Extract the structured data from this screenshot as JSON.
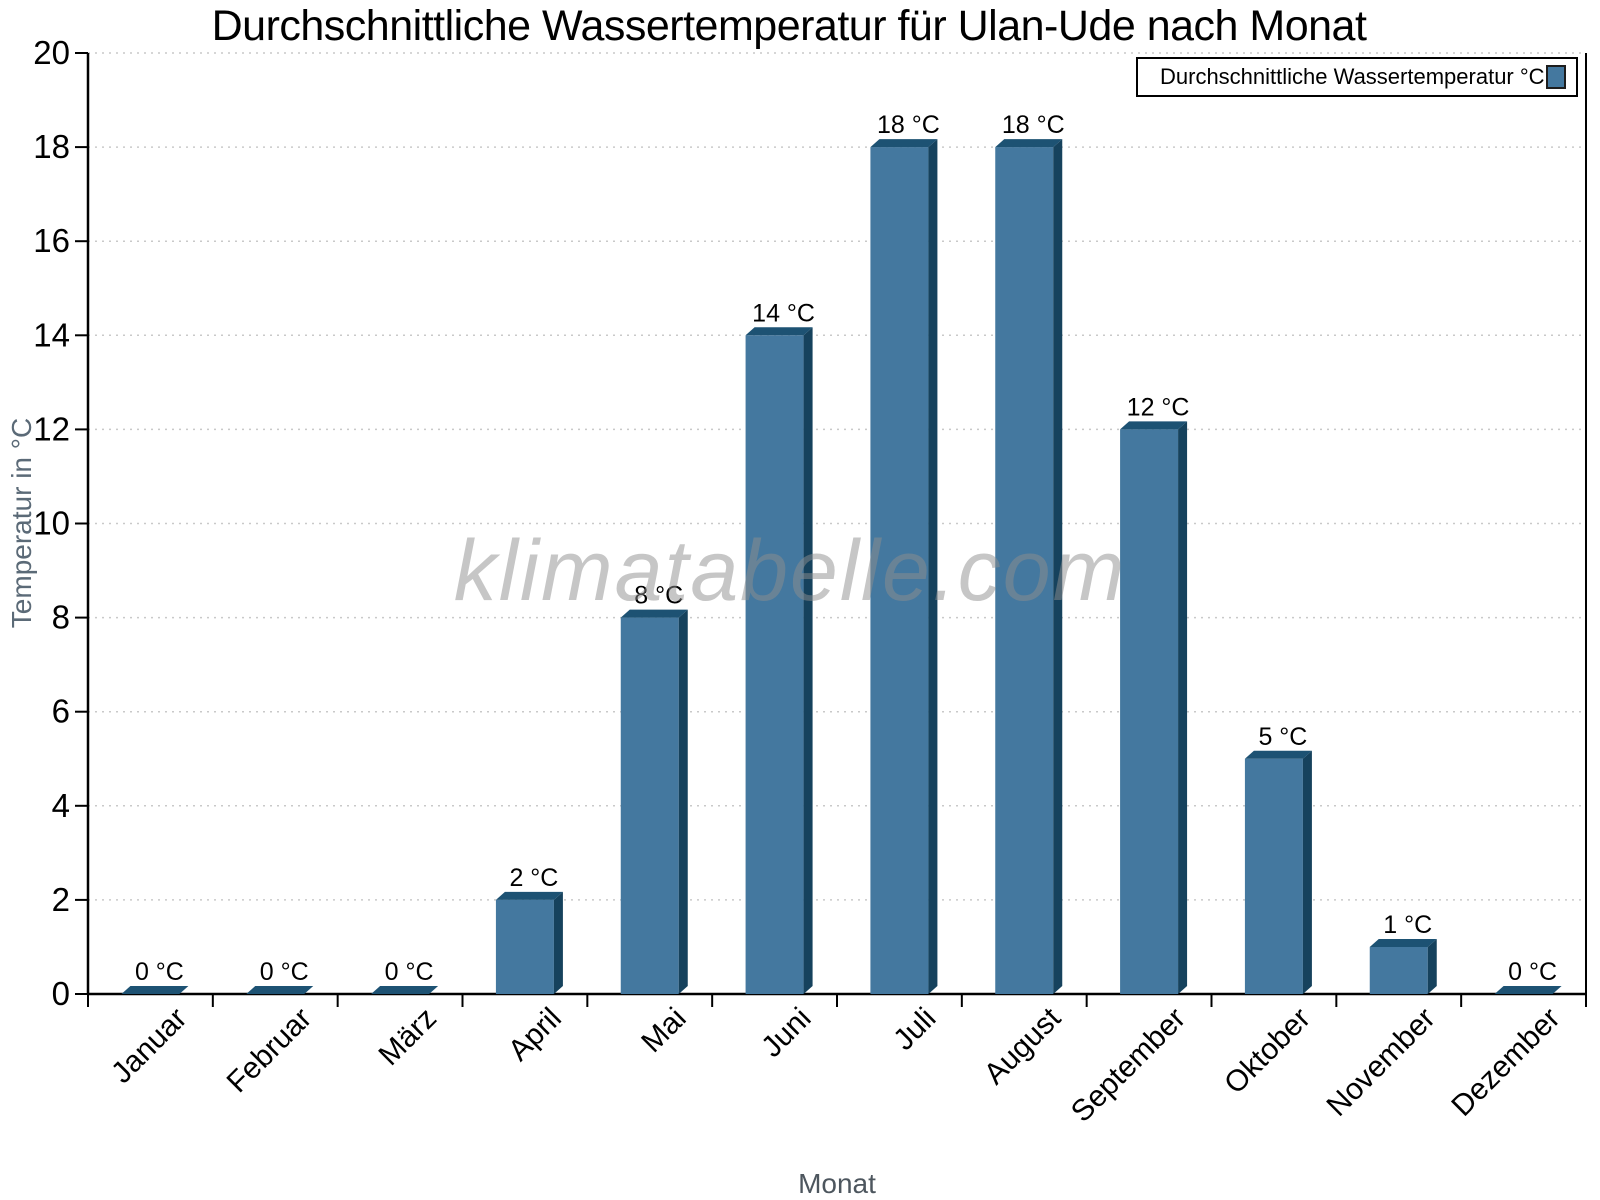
{
  "chart_data": {
    "type": "bar",
    "title": "Durchschnittliche Wassertemperatur für Ulan-Ude nach Monat",
    "xlabel": "Monat",
    "ylabel": "Temperatur in °C",
    "legend": "Durchschnittliche Wassertemperatur °C",
    "legend_position": "top-right",
    "watermark": "klimatabelle.com",
    "categories": [
      "Januar",
      "Februar",
      "März",
      "April",
      "Mai",
      "Juni",
      "Juli",
      "August",
      "September",
      "Oktober",
      "November",
      "Dezember"
    ],
    "values": [
      0,
      0,
      0,
      2,
      8,
      14,
      18,
      18,
      12,
      5,
      1,
      0
    ],
    "data_labels": [
      "0 °C",
      "0 °C",
      "0 °C",
      "2 °C",
      "8 °C",
      "14 °C",
      "18 °C",
      "18 °C",
      "12 °C",
      "5 °C",
      "1 °C",
      "0 °C"
    ],
    "unit": "°C",
    "ylim": [
      0,
      20
    ],
    "yticks": [
      0,
      2,
      4,
      6,
      8,
      10,
      12,
      14,
      16,
      18,
      20
    ],
    "grid": "horizontal-dotted",
    "colors": {
      "bar_face": "#44789F",
      "bar_top": "#1D5273",
      "bar_side": "#16425D",
      "gridline": "#c9c9c9",
      "axis": "#000000",
      "tick_label": "#000000",
      "axis_title": "#5b6a77",
      "watermark": "#8f8f8f"
    }
  }
}
